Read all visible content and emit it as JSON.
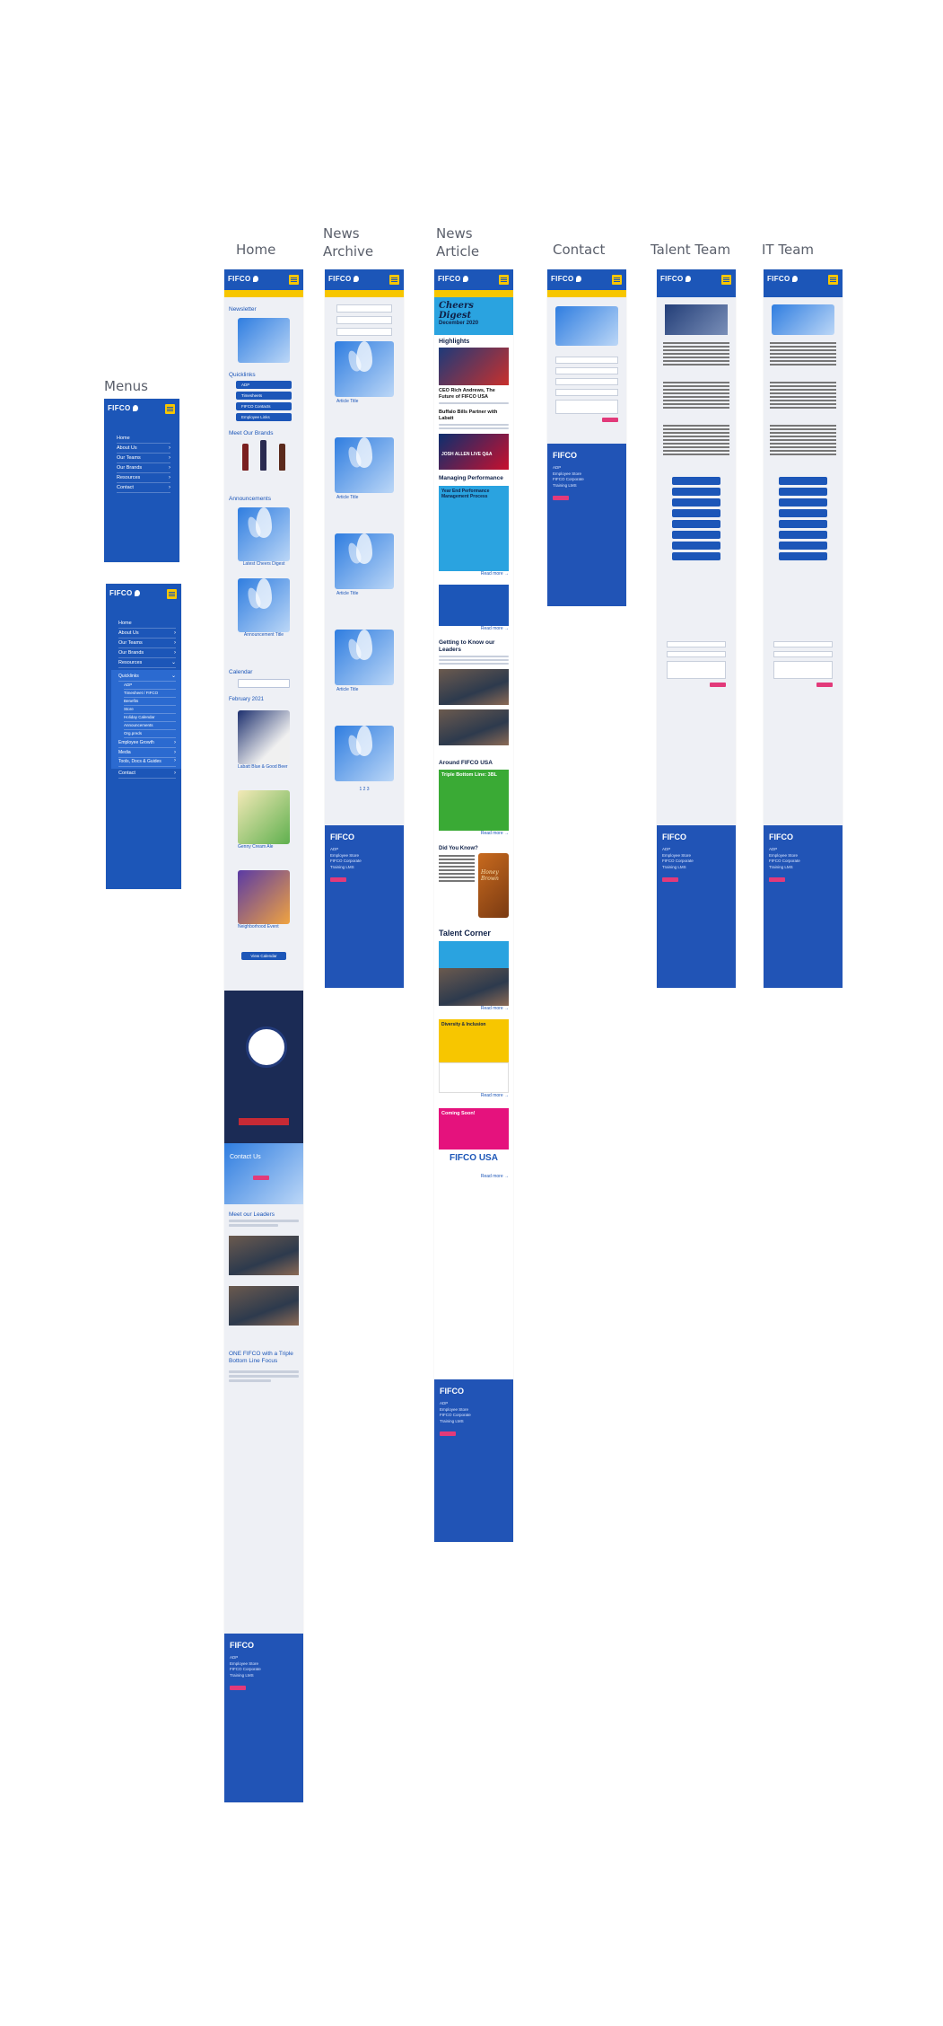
{
  "columns": {
    "menus": "Menus",
    "home": "Home",
    "news_archive": "News\nArchive",
    "news_article": "News\nArticle",
    "contact": "Contact",
    "talent_team": "Talent Team",
    "it_team": "IT Team"
  },
  "brand": {
    "logo": "FIFCO",
    "primary": "#1c56b8",
    "accent": "#f7c600",
    "pink": "#e23a7a"
  },
  "menu1": {
    "items": [
      "Home",
      "About Us",
      "Our Teams",
      "Our Brands",
      "Resources",
      "Contact"
    ]
  },
  "menu2": {
    "items": [
      "Home",
      "About Us",
      "Our Teams",
      "Our Brands",
      "Resources"
    ],
    "sub_header": "Quicklinks",
    "sub_items": [
      "ADP",
      "Timesheet / FIFCO",
      "Benefits",
      "Store",
      "Holiday Calendar",
      "Announcements",
      "Org.preds"
    ],
    "more": [
      "Employee Growth",
      "Media",
      "Tools, Docs & Guides",
      "Contact"
    ]
  },
  "home": {
    "newsletter": "Newsletter",
    "quicklinks": "Quicklinks",
    "quick_items": [
      "ADP",
      "Timesheets",
      "FIFCO Contacts",
      "Employee Links"
    ],
    "brands": "Meet Our Brands",
    "announcements": "Announcements",
    "ann_items": [
      "Latest Cheers Digest",
      "Announcement Title"
    ],
    "calendar": "Calendar",
    "month": "February 2021",
    "events": [
      "Labatt Blue & Good Beer",
      "Genny Cream Ale",
      "Neighborhood Event"
    ],
    "view_calendar": "View Calendar",
    "contact_us": "Contact Us",
    "meet_leaders": "Meet our Leaders",
    "tbl_title": "ONE FIFCO with a Triple Bottom Line Focus"
  },
  "archive": {
    "card_titles": [
      "Article Title",
      "Article Title",
      "Article Title",
      "Article Title",
      "Article Title"
    ],
    "pager": "1 2 3"
  },
  "article": {
    "title": "Cheers Digest",
    "date": "December 2020",
    "highlights": "Highlights",
    "h1": "CEO Rich Andrews, The Future of FIFCO USA",
    "h2": "Buffalo Bills Partner with Labatt",
    "josh": "JOSH ALLEN LIVE Q&A",
    "managing": "Managing Performance",
    "box1": "Year End Performance Management Process",
    "read_more": "Read more →",
    "leaders": "Getting to Know our Leaders",
    "around": "Around FIFCO USA",
    "triple": "Triple Bottom Line: 3BL",
    "did_you_know": "Did You Know?",
    "honey": "Honey Brown",
    "talent": "Talent Corner",
    "diversity": "Diversity & Inclusion",
    "coming": "Coming Soon!",
    "fifco_usa": "FIFCO USA"
  },
  "footer": {
    "logo": "FIFCO",
    "links": [
      "ADP",
      "Employee Store",
      "FIFCO Corporate",
      "Training LMS"
    ]
  }
}
